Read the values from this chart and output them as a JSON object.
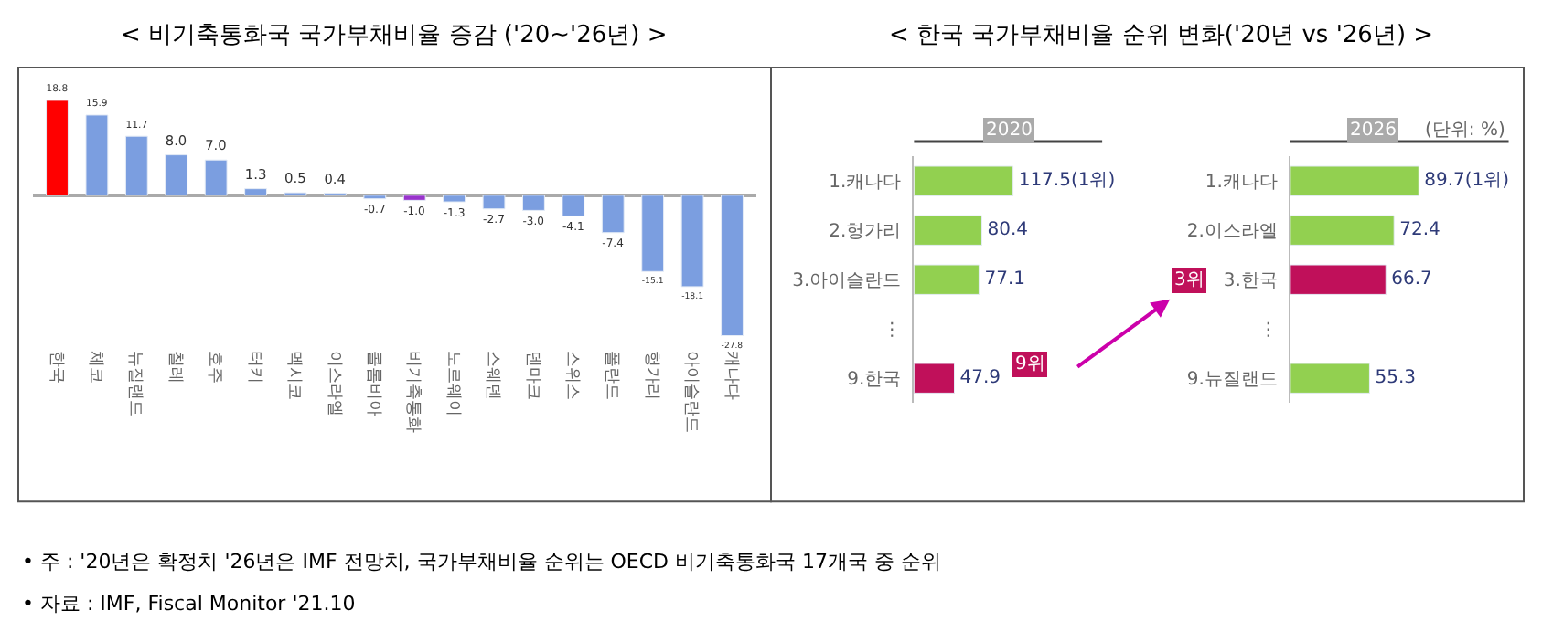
{
  "chart_data": [
    {
      "type": "bar",
      "title": "< 비기축통화국 국가부채비율 증감 ('20~'26년) >",
      "categories": [
        "한국",
        "체코",
        "뉴질랜드",
        "칠레",
        "호주",
        "터키",
        "멕시코",
        "이스라엘",
        "콜롬비아",
        "비기축통화",
        "노르웨이",
        "스웨덴",
        "덴마크",
        "스위스",
        "폴란드",
        "헝가리",
        "아이슬란드",
        "캐나다"
      ],
      "values": [
        18.8,
        15.9,
        11.7,
        8.0,
        7.0,
        1.3,
        0.5,
        0.4,
        -0.7,
        -1.0,
        -1.3,
        -2.7,
        -3.0,
        -4.1,
        -7.4,
        -15.1,
        -18.1,
        -27.8
      ],
      "value_labels": [
        "18.8",
        "15.9",
        "11.7",
        "8.0",
        "7.0",
        "1.3",
        "0.5",
        "0.4",
        "-0.7",
        "-1.0",
        "-1.3",
        "-2.7",
        "-3.0",
        "-4.1",
        "-7.4",
        "-15.1",
        "-18.1",
        "-27.8"
      ],
      "colors": [
        "#ff0000",
        "#7b9ee0",
        "#7b9ee0",
        "#7b9ee0",
        "#7b9ee0",
        "#7b9ee0",
        "#7b9ee0",
        "#7b9ee0",
        "#7b9ee0",
        "#9933cc",
        "#7b9ee0",
        "#7b9ee0",
        "#7b9ee0",
        "#7b9ee0",
        "#7b9ee0",
        "#7b9ee0",
        "#7b9ee0",
        "#7b9ee0"
      ],
      "annotations": [
        "• 주 : '20년은 확정치 '26년은 IMF 전망치, 국가부채비율 순위는 OECD 비기축통화국 17개국 중 순위",
        "• 자료 : IMF, Fiscal Monitor '21.10"
      ]
    },
    {
      "type": "bar",
      "orientation": "horizontal",
      "title": "< 한국 국가부채비율 순위 변화('20년 vs '26년) >",
      "subtitle": "2020",
      "categories": [
        "1.캐나다",
        "2.헝가리",
        "3.아이슬란드",
        "⋮",
        "9.한국"
      ],
      "values": [
        117.5,
        80.4,
        77.1,
        null,
        47.9
      ],
      "value_labels": [
        "117.5(1위)",
        "80.4",
        "77.1",
        null,
        "47.9"
      ],
      "colors": [
        "#92d050",
        "#92d050",
        "#92d050",
        "#92d050",
        "#c0105a"
      ],
      "annotations": [
        "9위"
      ]
    },
    {
      "type": "bar",
      "orientation": "horizontal",
      "subtitle": "2026",
      "categories": [
        "1.캐나다",
        "2.이스라엘",
        "3.한국",
        "⋮",
        "9.뉴질랜드"
      ],
      "values": [
        89.7,
        72.4,
        66.7,
        null,
        55.3
      ],
      "value_labels": [
        "89.7(1위)",
        "72.4",
        "66.7",
        null,
        "55.3"
      ],
      "colors": [
        "#92d050",
        "#92d050",
        "#c0105a",
        "#92d050",
        "#92d050"
      ],
      "annotations": [
        "3위",
        "(단위: %)"
      ]
    }
  ]
}
